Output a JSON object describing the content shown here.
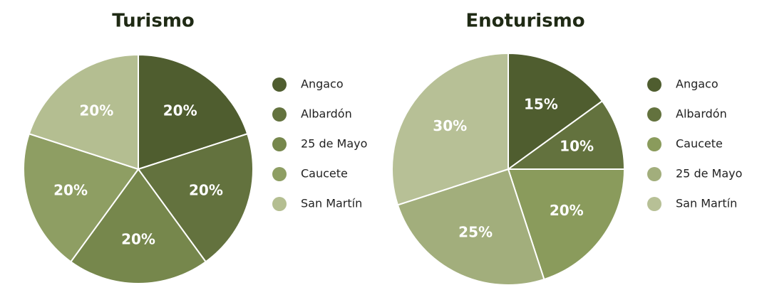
{
  "chart_data": [
    {
      "type": "pie",
      "title": "Turismo",
      "categories": [
        "Angaco",
        "Albardón",
        "25 de Mayo",
        "Caucete",
        "San Martín"
      ],
      "values": [
        20,
        20,
        20,
        20,
        20
      ],
      "value_labels": [
        "20%",
        "20%",
        "20%",
        "20%",
        "20%"
      ],
      "colors": [
        "#4f5d2f",
        "#63723e",
        "#76874c",
        "#8e9e63",
        "#b4be91"
      ]
    },
    {
      "type": "pie",
      "title": "Enoturismo",
      "categories": [
        "Angaco",
        "Albardón",
        "Caucete",
        "25 de Mayo",
        "San Martín"
      ],
      "values": [
        15,
        10,
        20,
        25,
        30
      ],
      "value_labels": [
        "15%",
        "10%",
        "20%",
        "25%",
        "30%"
      ],
      "colors": [
        "#4f5d2f",
        "#63723e",
        "#8a9b5c",
        "#a2ae7c",
        "#b7c096"
      ]
    }
  ]
}
